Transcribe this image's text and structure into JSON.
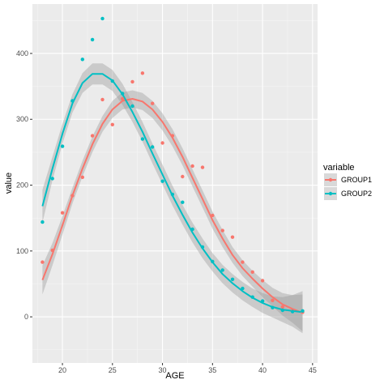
{
  "chart_data": {
    "type": "scatter",
    "xlabel": "AGE",
    "ylabel": "value",
    "xlim": [
      17,
      45.5
    ],
    "ylim": [
      -70,
      475
    ],
    "x_ticks": [
      20,
      25,
      30,
      35,
      40,
      45
    ],
    "y_ticks": [
      0,
      100,
      200,
      300,
      400
    ],
    "grid": true,
    "legend": {
      "title": "variable",
      "position": "right"
    },
    "smooth": {
      "band_color": "#999999"
    },
    "series": [
      {
        "name": "GROUP1",
        "color": "#F8766D",
        "x": [
          18,
          19,
          20,
          21,
          22,
          23,
          24,
          25,
          26,
          27,
          28,
          29,
          30,
          31,
          32,
          33,
          34,
          35,
          36,
          37,
          38,
          39,
          40,
          41,
          42,
          43,
          44
        ],
        "y": [
          83,
          101,
          158,
          184,
          212,
          275,
          330,
          292,
          331,
          357,
          370,
          324,
          264,
          275,
          213,
          229,
          227,
          154,
          131,
          121,
          83,
          68,
          55,
          25,
          15,
          10,
          7
        ],
        "smooth": [
          [
            18,
            56
          ],
          [
            19,
            95
          ],
          [
            20,
            139
          ],
          [
            21,
            184
          ],
          [
            22,
            225
          ],
          [
            23,
            262
          ],
          [
            24,
            293
          ],
          [
            25,
            315
          ],
          [
            26,
            328
          ],
          [
            27,
            331
          ],
          [
            28,
            327
          ],
          [
            29,
            315
          ],
          [
            30,
            296
          ],
          [
            31,
            272
          ],
          [
            32,
            243
          ],
          [
            33,
            211
          ],
          [
            34,
            179
          ],
          [
            35,
            147
          ],
          [
            36,
            119
          ],
          [
            37,
            94
          ],
          [
            38,
            74
          ],
          [
            39,
            58
          ],
          [
            40,
            43
          ],
          [
            41,
            30
          ],
          [
            42,
            19
          ],
          [
            43,
            12
          ],
          [
            44,
            6
          ]
        ],
        "smooth_se": [
          22,
          17,
          14,
          12,
          12,
          12,
          12,
          13,
          13,
          13,
          13,
          13,
          13,
          13,
          13,
          13,
          13,
          13,
          13,
          12,
          12,
          12,
          13,
          14,
          17,
          21,
          28
        ]
      },
      {
        "name": "GROUP2",
        "color": "#00BFC4",
        "x": [
          18,
          19,
          20,
          21,
          22,
          23,
          24,
          25,
          26,
          27,
          28,
          29,
          30,
          31,
          32,
          33,
          34,
          35,
          36,
          37,
          38,
          39,
          40,
          41,
          42,
          43,
          44
        ],
        "y": [
          144,
          210,
          259,
          328,
          391,
          421,
          453,
          358,
          339,
          320,
          270,
          258,
          206,
          186,
          174,
          133,
          106,
          84,
          71,
          57,
          43,
          30,
          24,
          14,
          10,
          8,
          9
        ],
        "smooth": [
          [
            18,
            168
          ],
          [
            19,
            225
          ],
          [
            20,
            278
          ],
          [
            21,
            324
          ],
          [
            22,
            355
          ],
          [
            23,
            369
          ],
          [
            24,
            369
          ],
          [
            25,
            359
          ],
          [
            26,
            338
          ],
          [
            27,
            311
          ],
          [
            28,
            281
          ],
          [
            29,
            248
          ],
          [
            30,
            216
          ],
          [
            31,
            184
          ],
          [
            32,
            155
          ],
          [
            33,
            128
          ],
          [
            34,
            104
          ],
          [
            35,
            83
          ],
          [
            36,
            65
          ],
          [
            37,
            51
          ],
          [
            38,
            39
          ],
          [
            39,
            29
          ],
          [
            40,
            21
          ],
          [
            41,
            15
          ],
          [
            42,
            11
          ],
          [
            43,
            9
          ],
          [
            44,
            7
          ]
        ],
        "smooth_se": [
          25,
          18,
          15,
          14,
          15,
          16,
          16,
          16,
          16,
          15,
          15,
          15,
          15,
          15,
          15,
          15,
          15,
          14,
          14,
          14,
          14,
          14,
          15,
          16,
          19,
          24,
          32
        ]
      }
    ]
  }
}
